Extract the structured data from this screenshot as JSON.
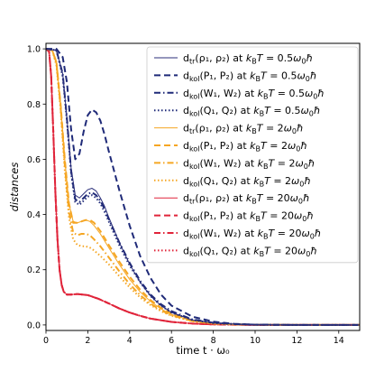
{
  "chart_data": {
    "type": "line",
    "xlabel": "time t · ω₀",
    "ylabel": "distances",
    "xlim": [
      0,
      15
    ],
    "ylim": [
      -0.02,
      1.02
    ],
    "xticks": [
      0,
      2,
      4,
      6,
      8,
      10,
      12,
      14
    ],
    "yticks": [
      0.0,
      0.2,
      0.4,
      0.6,
      0.8,
      1.0
    ],
    "xtick_labels": [
      "0",
      "2",
      "4",
      "6",
      "8",
      "10",
      "12",
      "14"
    ],
    "ytick_labels": [
      "0.0",
      "0.2",
      "0.4",
      "0.6",
      "0.8",
      "1.0"
    ],
    "grid": false,
    "legend_placement": "top-right",
    "series": [
      {
        "name": "d_tr(ρ1, ρ2) at k_BT = 0.5ω0ħ",
        "legend": {
          "main": "d",
          "sub": "tr",
          "args": "(ρ₁, ρ₂)",
          "temp": "0.5"
        },
        "color": "#2b2f7a",
        "style": "solid",
        "width": 1.0,
        "x": [
          0,
          0.5,
          0.8,
          1.0,
          1.2,
          1.4,
          1.6,
          1.8,
          2.0,
          2.2,
          2.4,
          2.6,
          2.8,
          3.0,
          3.5,
          4.0,
          4.5,
          5.0,
          5.5,
          6.0,
          7.0,
          8.0,
          9.0,
          10.0,
          12.0,
          15.0
        ],
        "y": [
          1.0,
          0.995,
          0.91,
          0.75,
          0.57,
          0.47,
          0.46,
          0.475,
          0.49,
          0.495,
          0.485,
          0.46,
          0.43,
          0.39,
          0.3,
          0.22,
          0.155,
          0.105,
          0.07,
          0.045,
          0.018,
          0.007,
          0.003,
          0.001,
          0.0,
          0.0
        ]
      },
      {
        "name": "d_kol(P1, P2) at k_BT = 0.5ω0ħ",
        "legend": {
          "main": "d",
          "sub": "kol",
          "args": "(P₁, P₂)",
          "temp": "0.5"
        },
        "color": "#1f2a78",
        "style": "dashed",
        "width": 2.0,
        "x": [
          0,
          0.5,
          0.8,
          1.0,
          1.2,
          1.4,
          1.6,
          1.8,
          2.0,
          2.2,
          2.4,
          2.6,
          2.8,
          3.0,
          3.5,
          4.0,
          4.5,
          5.0,
          5.5,
          6.0,
          7.0,
          8.0,
          9.0,
          10.0,
          12.0,
          15.0
        ],
        "y": [
          1.0,
          1.0,
          0.97,
          0.88,
          0.71,
          0.6,
          0.62,
          0.7,
          0.76,
          0.78,
          0.77,
          0.74,
          0.69,
          0.63,
          0.49,
          0.36,
          0.25,
          0.17,
          0.11,
          0.07,
          0.03,
          0.012,
          0.004,
          0.001,
          0.0,
          0.0
        ]
      },
      {
        "name": "d_kol(W1, W2) at k_BT = 0.5ω0ħ",
        "legend": {
          "main": "d",
          "sub": "kol",
          "args": "(W₁, W₂)",
          "temp": "0.5"
        },
        "color": "#1f2a78",
        "style": "dashdot",
        "width": 2.0,
        "x": [
          0,
          0.5,
          0.8,
          1.0,
          1.2,
          1.4,
          1.6,
          1.8,
          2.0,
          2.2,
          2.4,
          2.6,
          2.8,
          3.0,
          3.5,
          4.0,
          4.5,
          5.0,
          5.5,
          6.0,
          7.0,
          8.0,
          9.0,
          10.0,
          12.0,
          15.0
        ],
        "y": [
          1.0,
          0.995,
          0.91,
          0.75,
          0.56,
          0.455,
          0.445,
          0.46,
          0.475,
          0.48,
          0.47,
          0.45,
          0.42,
          0.385,
          0.3,
          0.225,
          0.16,
          0.11,
          0.075,
          0.05,
          0.02,
          0.008,
          0.003,
          0.001,
          0.0,
          0.0
        ]
      },
      {
        "name": "d_kol(Q1, Q2) at k_BT = 0.5ω0ħ",
        "legend": {
          "main": "d",
          "sub": "kol",
          "args": "(Q₁, Q₂)",
          "temp": "0.5"
        },
        "color": "#1f2a78",
        "style": "dotted",
        "width": 2.0,
        "x": [
          0,
          0.5,
          0.8,
          1.0,
          1.2,
          1.4,
          1.6,
          1.8,
          2.0,
          2.2,
          2.4,
          2.6,
          2.8,
          3.0,
          3.5,
          4.0,
          4.5,
          5.0,
          5.5,
          6.0,
          7.0,
          8.0,
          9.0,
          10.0,
          12.0,
          15.0
        ],
        "y": [
          1.0,
          0.995,
          0.9,
          0.74,
          0.55,
          0.445,
          0.435,
          0.45,
          0.465,
          0.47,
          0.46,
          0.44,
          0.41,
          0.375,
          0.29,
          0.215,
          0.155,
          0.105,
          0.07,
          0.045,
          0.018,
          0.007,
          0.003,
          0.001,
          0.0,
          0.0
        ]
      },
      {
        "name": "d_tr(ρ1, ρ2) at k_BT = 2ω0ħ",
        "legend": {
          "main": "d",
          "sub": "tr",
          "args": "(ρ₁, ρ₂)",
          "temp": "2"
        },
        "color": "#f5a623",
        "style": "solid",
        "width": 1.0,
        "x": [
          0,
          0.3,
          0.5,
          0.7,
          0.9,
          1.1,
          1.3,
          1.5,
          1.7,
          1.9,
          2.1,
          2.3,
          2.6,
          3.0,
          3.5,
          4.0,
          4.5,
          5.0,
          5.5,
          6.0,
          7.0,
          8.0,
          9.0,
          10.0,
          12.0,
          15.0
        ],
        "y": [
          1.0,
          0.995,
          0.95,
          0.8,
          0.6,
          0.44,
          0.375,
          0.37,
          0.375,
          0.38,
          0.375,
          0.36,
          0.33,
          0.28,
          0.22,
          0.165,
          0.12,
          0.085,
          0.058,
          0.038,
          0.015,
          0.006,
          0.002,
          0.001,
          0.0,
          0.0
        ]
      },
      {
        "name": "d_kol(P1, P2) at k_BT = 2ω0ħ",
        "legend": {
          "main": "d",
          "sub": "kol",
          "args": "(P₁, P₂)",
          "temp": "2"
        },
        "color": "#f5a623",
        "style": "dashed",
        "width": 2.0,
        "x": [
          0,
          0.3,
          0.5,
          0.7,
          0.9,
          1.1,
          1.3,
          1.5,
          1.7,
          1.9,
          2.1,
          2.3,
          2.6,
          3.0,
          3.5,
          4.0,
          4.5,
          5.0,
          5.5,
          6.0,
          7.0,
          8.0,
          9.0,
          10.0,
          12.0,
          15.0
        ],
        "y": [
          1.0,
          0.995,
          0.95,
          0.8,
          0.6,
          0.44,
          0.37,
          0.37,
          0.375,
          0.38,
          0.38,
          0.37,
          0.34,
          0.29,
          0.23,
          0.175,
          0.128,
          0.09,
          0.062,
          0.04,
          0.016,
          0.006,
          0.002,
          0.001,
          0.0,
          0.0
        ]
      },
      {
        "name": "d_kol(W1, W2) at k_BT = 2ω0ħ",
        "legend": {
          "main": "d",
          "sub": "kol",
          "args": "(W₁, W₂)",
          "temp": "2"
        },
        "color": "#f5a623",
        "style": "dashdot",
        "width": 2.0,
        "x": [
          0,
          0.3,
          0.5,
          0.7,
          0.9,
          1.1,
          1.3,
          1.5,
          1.7,
          1.9,
          2.1,
          2.3,
          2.6,
          3.0,
          3.5,
          4.0,
          4.5,
          5.0,
          5.5,
          6.0,
          7.0,
          8.0,
          9.0,
          10.0,
          12.0,
          15.0
        ],
        "y": [
          1.0,
          0.995,
          0.95,
          0.79,
          0.58,
          0.41,
          0.335,
          0.325,
          0.33,
          0.33,
          0.325,
          0.31,
          0.285,
          0.245,
          0.195,
          0.148,
          0.108,
          0.077,
          0.053,
          0.035,
          0.014,
          0.005,
          0.002,
          0.001,
          0.0,
          0.0
        ]
      },
      {
        "name": "d_kol(Q1, Q2) at k_BT = 2ω0ħ",
        "legend": {
          "main": "d",
          "sub": "kol",
          "args": "(Q₁, Q₂)",
          "temp": "2"
        },
        "color": "#f5a623",
        "style": "dotted",
        "width": 2.0,
        "x": [
          0,
          0.3,
          0.5,
          0.7,
          0.9,
          1.1,
          1.3,
          1.5,
          1.7,
          1.9,
          2.1,
          2.3,
          2.6,
          3.0,
          3.5,
          4.0,
          4.5,
          5.0,
          5.5,
          6.0,
          7.0,
          8.0,
          9.0,
          10.0,
          12.0,
          15.0
        ],
        "y": [
          1.0,
          0.995,
          0.94,
          0.78,
          0.56,
          0.39,
          0.31,
          0.29,
          0.285,
          0.285,
          0.28,
          0.27,
          0.25,
          0.22,
          0.177,
          0.136,
          0.1,
          0.072,
          0.05,
          0.033,
          0.013,
          0.005,
          0.002,
          0.001,
          0.0,
          0.0
        ]
      },
      {
        "name": "d_tr(ρ1, ρ2) at k_BT = 20ω0ħ",
        "legend": {
          "main": "d",
          "sub": "tr",
          "args": "(ρ₁, ρ₂)",
          "temp": "20"
        },
        "color": "#e0243a",
        "style": "solid",
        "width": 1.0,
        "x": [
          0,
          0.15,
          0.25,
          0.35,
          0.45,
          0.55,
          0.65,
          0.75,
          0.85,
          1.0,
          1.2,
          1.5,
          2.0,
          2.5,
          3.0,
          3.5,
          4.0,
          4.5,
          5.0,
          6.0,
          7.0,
          8.0,
          9.0,
          10.0,
          12.0,
          15.0
        ],
        "y": [
          1.0,
          0.99,
          0.9,
          0.7,
          0.48,
          0.31,
          0.2,
          0.145,
          0.12,
          0.11,
          0.11,
          0.112,
          0.108,
          0.095,
          0.078,
          0.06,
          0.045,
          0.033,
          0.023,
          0.011,
          0.005,
          0.002,
          0.001,
          0.0,
          0.0,
          0.0
        ]
      },
      {
        "name": "d_kol(P1, P2) at k_BT = 20ω0ħ",
        "legend": {
          "main": "d",
          "sub": "kol",
          "args": "(P₁, P₂)",
          "temp": "20"
        },
        "color": "#e0243a",
        "style": "dashed",
        "width": 2.0,
        "x": [
          0,
          0.15,
          0.25,
          0.35,
          0.45,
          0.55,
          0.65,
          0.75,
          0.85,
          1.0,
          1.2,
          1.5,
          2.0,
          2.5,
          3.0,
          3.5,
          4.0,
          4.5,
          5.0,
          6.0,
          7.0,
          8.0,
          9.0,
          10.0,
          12.0,
          15.0
        ],
        "y": [
          1.0,
          0.99,
          0.9,
          0.7,
          0.48,
          0.31,
          0.2,
          0.145,
          0.12,
          0.11,
          0.11,
          0.112,
          0.108,
          0.095,
          0.078,
          0.06,
          0.045,
          0.033,
          0.023,
          0.011,
          0.005,
          0.002,
          0.001,
          0.0,
          0.0,
          0.0
        ]
      },
      {
        "name": "d_kol(W1, W2) at k_BT = 20ω0ħ",
        "legend": {
          "main": "d",
          "sub": "kol",
          "args": "(W₁, W₂)",
          "temp": "20"
        },
        "color": "#e0243a",
        "style": "dashdot",
        "width": 2.0,
        "x": [
          0,
          0.15,
          0.25,
          0.35,
          0.45,
          0.55,
          0.65,
          0.75,
          0.85,
          1.0,
          1.2,
          1.5,
          2.0,
          2.5,
          3.0,
          3.5,
          4.0,
          4.5,
          5.0,
          6.0,
          7.0,
          8.0,
          9.0,
          10.0,
          12.0,
          15.0
        ],
        "y": [
          1.0,
          0.99,
          0.9,
          0.7,
          0.48,
          0.31,
          0.2,
          0.145,
          0.12,
          0.11,
          0.11,
          0.112,
          0.108,
          0.095,
          0.078,
          0.06,
          0.045,
          0.033,
          0.023,
          0.011,
          0.005,
          0.002,
          0.001,
          0.0,
          0.0,
          0.0
        ]
      },
      {
        "name": "d_kol(Q1, Q2) at k_BT = 20ω0ħ",
        "legend": {
          "main": "d",
          "sub": "kol",
          "args": "(Q₁, Q₂)",
          "temp": "20"
        },
        "color": "#e0243a",
        "style": "dotted",
        "width": 2.0,
        "x": [
          0,
          0.15,
          0.25,
          0.35,
          0.45,
          0.55,
          0.65,
          0.75,
          0.85,
          1.0,
          1.2,
          1.5,
          2.0,
          2.5,
          3.0,
          3.5,
          4.0,
          4.5,
          5.0,
          6.0,
          7.0,
          8.0,
          9.0,
          10.0,
          12.0,
          15.0
        ],
        "y": [
          1.0,
          0.99,
          0.9,
          0.7,
          0.48,
          0.31,
          0.2,
          0.145,
          0.12,
          0.11,
          0.11,
          0.112,
          0.108,
          0.095,
          0.078,
          0.06,
          0.045,
          0.033,
          0.023,
          0.011,
          0.005,
          0.002,
          0.001,
          0.0,
          0.0,
          0.0
        ]
      }
    ]
  }
}
